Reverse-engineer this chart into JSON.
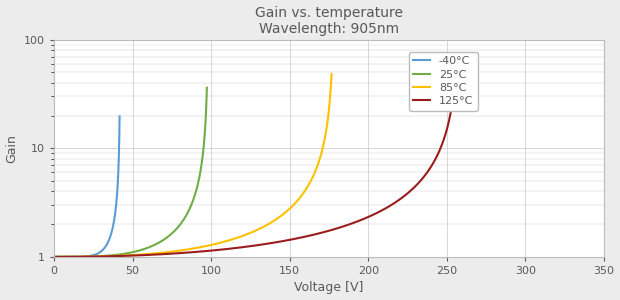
{
  "title": "Gain vs. temperature",
  "subtitle": "Wavelength: 905nm",
  "xlabel": "Voltage [V]",
  "ylabel": "Gain",
  "xlim": [
    0,
    350
  ],
  "ylim": [
    1,
    100
  ],
  "background_color": "#ececec",
  "plot_background": "#ffffff",
  "grid_color": "#c8c8c8",
  "title_color": "#595959",
  "label_color": "#595959",
  "tick_color": "#595959",
  "series": [
    {
      "label": "-40°C",
      "color": "#5b9bd5",
      "v_br": 42.0,
      "alpha": 6.5
    },
    {
      "label": "25°C",
      "color": "#70ad47",
      "v_br": 98.0,
      "alpha": 3.5
    },
    {
      "label": "85°C",
      "color": "#ffc000",
      "v_br": 178.0,
      "alpha": 2.6
    },
    {
      "label": "125°C",
      "color": "#9b1c1c",
      "v_br": 258.0,
      "alpha": 2.2
    }
  ]
}
